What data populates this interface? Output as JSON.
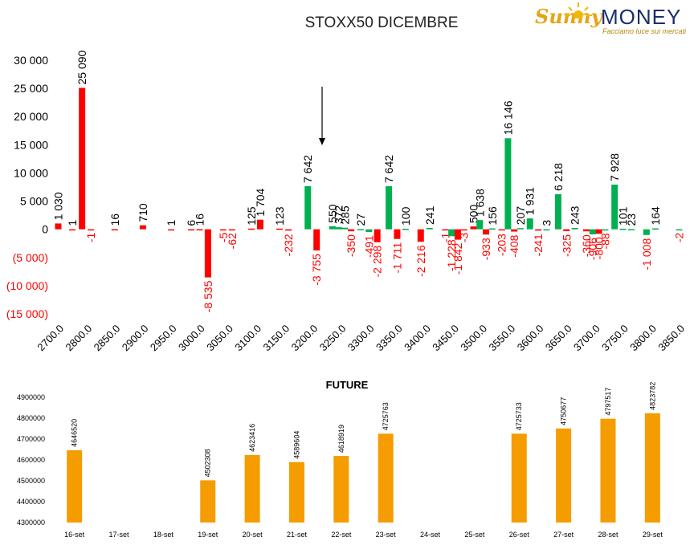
{
  "header": {
    "title": "STOXX50 DICEMBRE",
    "logo_word1": "Sunny",
    "logo_word2": "MONEY",
    "logo_tagline": "Facciamo luce sui mercati"
  },
  "chart_data": [
    {
      "type": "bar",
      "title": "STOXX50 DICEMBRE",
      "colors": {
        "positive": "#00b050",
        "negative": "#ff0000",
        "label_negative": "#ff0000",
        "label_positive": "#000000"
      },
      "ylim": [
        -15000,
        30000
      ],
      "yticks": [
        30000,
        25000,
        20000,
        15000,
        10000,
        5000,
        0,
        -5000,
        -10000,
        -15000
      ],
      "ytick_labels": [
        "30 000",
        "25 000",
        "20 000",
        "15 000",
        "10 000",
        "5 000",
        "0",
        "(5 000)",
        "(10 000)",
        "(15 000)"
      ],
      "x_tick_labels": [
        "2700.0",
        "2800.0",
        "2850.0",
        "2900.0",
        "2950.0",
        "3000.0",
        "3050.0",
        "3100.0",
        "3150.0",
        "3200.0",
        "3250.0",
        "3300.0",
        "3350.0",
        "3400.0",
        "3450.0",
        "3500.0",
        "3550.0",
        "3600.0",
        "3650.0",
        "3700.0",
        "3750.0",
        "3800.0",
        "3850.0"
      ],
      "marker_arrow_strike": "3250.0",
      "bars": [
        {
          "strike": "2700.0",
          "value": 1030,
          "label": "1 030",
          "color": "red"
        },
        {
          "strike": "2750.0",
          "value": 1,
          "label": "1",
          "color": "red"
        },
        {
          "strike": "2800.0",
          "value": 25090,
          "label": "25 090",
          "color": "red"
        },
        {
          "strike": "2800.0",
          "value": -1,
          "label": "-1",
          "color": "red"
        },
        {
          "strike": "2850.0",
          "value": 16,
          "label": "16",
          "color": "red"
        },
        {
          "strike": "2900.0",
          "value": 710,
          "label": "710",
          "color": "red"
        },
        {
          "strike": "2950.0",
          "value": 1,
          "label": "1",
          "color": "red"
        },
        {
          "strike": "3000.0",
          "value": 6,
          "label": "6",
          "color": "red"
        },
        {
          "strike": "3000.0",
          "value": 16,
          "label": "16",
          "color": "red"
        },
        {
          "strike": "3000.0",
          "value": -8535,
          "label": "-8 535",
          "color": "red"
        },
        {
          "strike": "3050.0",
          "value": -5,
          "label": "-5",
          "color": "red"
        },
        {
          "strike": "3050.0",
          "value": -62,
          "label": "-62",
          "color": "red"
        },
        {
          "strike": "3100.0",
          "value": 125,
          "label": "125",
          "color": "red"
        },
        {
          "strike": "3100.0",
          "value": 1704,
          "label": "1 704",
          "color": "red"
        },
        {
          "strike": "3150.0",
          "value": 123,
          "label": "123",
          "color": "red"
        },
        {
          "strike": "3150.0",
          "value": -232,
          "label": "-232",
          "color": "red"
        },
        {
          "strike": "3200.0",
          "value": 7642,
          "label": "7 642",
          "color": "green"
        },
        {
          "strike": "3200.0",
          "value": -3755,
          "label": "-3 755",
          "color": "red"
        },
        {
          "strike": "3250.0",
          "value": 550,
          "label": "550",
          "color": "green"
        },
        {
          "strike": "3250.0",
          "value": 372,
          "label": "372",
          "color": "green"
        },
        {
          "strike": "3250.0",
          "value": 285,
          "label": "285",
          "color": "green"
        },
        {
          "strike": "3250.0",
          "value": -350,
          "label": "-350",
          "color": "red"
        },
        {
          "strike": "3300.0",
          "value": 27,
          "label": "27",
          "color": "green"
        },
        {
          "strike": "3300.0",
          "value": -491,
          "label": "-491",
          "color": "green"
        },
        {
          "strike": "3300.0",
          "value": -2298,
          "label": "-2 298",
          "color": "red"
        },
        {
          "strike": "3350.0",
          "value": 7642,
          "label": "7 642",
          "color": "green"
        },
        {
          "strike": "3350.0",
          "value": -1711,
          "label": "-1 711",
          "color": "red"
        },
        {
          "strike": "3350.0",
          "value": 100,
          "label": "100",
          "color": "green"
        },
        {
          "strike": "3400.0",
          "value": -2216,
          "label": "-2 216",
          "color": "red"
        },
        {
          "strike": "3400.0",
          "value": 241,
          "label": "241",
          "color": "green"
        },
        {
          "strike": "3450.0",
          "value": -1,
          "label": "-1",
          "color": "red"
        },
        {
          "strike": "3450.0",
          "value": -1228,
          "label": "-1 228",
          "color": "green"
        },
        {
          "strike": "3450.0",
          "value": -1842,
          "label": "-1 842",
          "color": "red"
        },
        {
          "strike": "3450.0",
          "value": -3,
          "label": "-3",
          "color": "red"
        },
        {
          "strike": "3500.0",
          "value": 500,
          "label": "500",
          "color": "red"
        },
        {
          "strike": "3500.0",
          "value": 1638,
          "label": "1 638",
          "color": "green"
        },
        {
          "strike": "3500.0",
          "value": -933,
          "label": "-933",
          "color": "red"
        },
        {
          "strike": "3500.0",
          "value": 156,
          "label": "156",
          "color": "green"
        },
        {
          "strike": "3550.0",
          "value": -203,
          "label": "-203",
          "color": "red"
        },
        {
          "strike": "3550.0",
          "value": 16146,
          "label": "16 146",
          "color": "green"
        },
        {
          "strike": "3550.0",
          "value": -408,
          "label": "-408",
          "color": "red"
        },
        {
          "strike": "3550.0",
          "value": 207,
          "label": "207",
          "color": "green"
        },
        {
          "strike": "3600.0",
          "value": 1931,
          "label": "1 931",
          "color": "green"
        },
        {
          "strike": "3600.0",
          "value": -241,
          "label": "-241",
          "color": "red"
        },
        {
          "strike": "3600.0",
          "value": 3,
          "label": "3",
          "color": "green"
        },
        {
          "strike": "3650.0",
          "value": 6218,
          "label": "6 218",
          "color": "green"
        },
        {
          "strike": "3650.0",
          "value": -325,
          "label": "-325",
          "color": "red"
        },
        {
          "strike": "3650.0",
          "value": 243,
          "label": "243",
          "color": "green"
        },
        {
          "strike": "3700.0",
          "value": -360,
          "label": "-360",
          "color": "red"
        },
        {
          "strike": "3700.0",
          "value": -906,
          "label": "-906",
          "color": "green"
        },
        {
          "strike": "3700.0",
          "value": -800,
          "label": "-800",
          "color": "red"
        },
        {
          "strike": "3700.0",
          "value": -88,
          "label": "-88",
          "color": "green"
        },
        {
          "strike": "3750.0",
          "value": 7928,
          "label": "7 928",
          "color": "green"
        },
        {
          "strike": "3750.0",
          "value": 101,
          "label": "101",
          "color": "green"
        },
        {
          "strike": "3750.0",
          "value": 23,
          "label": "23",
          "color": "green"
        },
        {
          "strike": "3800.0",
          "value": -1008,
          "label": "-1 008",
          "color": "green"
        },
        {
          "strike": "3800.0",
          "value": 164,
          "label": "164",
          "color": "green"
        },
        {
          "strike": "3850.0",
          "value": -2,
          "label": "-2",
          "color": "green"
        }
      ]
    },
    {
      "type": "bar",
      "title": "FUTURE",
      "bar_color": "#f59c00",
      "ylim": [
        4300000,
        4900000
      ],
      "ytick_labels": [
        "4900000",
        "4800000",
        "4700000",
        "4600000",
        "4500000",
        "4400000",
        "4300000"
      ],
      "categories": [
        "16-set",
        "17-set",
        "18-set",
        "19-set",
        "20-set",
        "21-set",
        "22-set",
        "23-set",
        "24-set",
        "25-set",
        "26-set",
        "27-set",
        "28-set",
        "29-set"
      ],
      "values": [
        4646520,
        null,
        null,
        4502308,
        4623416,
        4589604,
        4618919,
        4725763,
        null,
        null,
        4725733,
        4750677,
        4797517,
        4823782
      ]
    }
  ]
}
